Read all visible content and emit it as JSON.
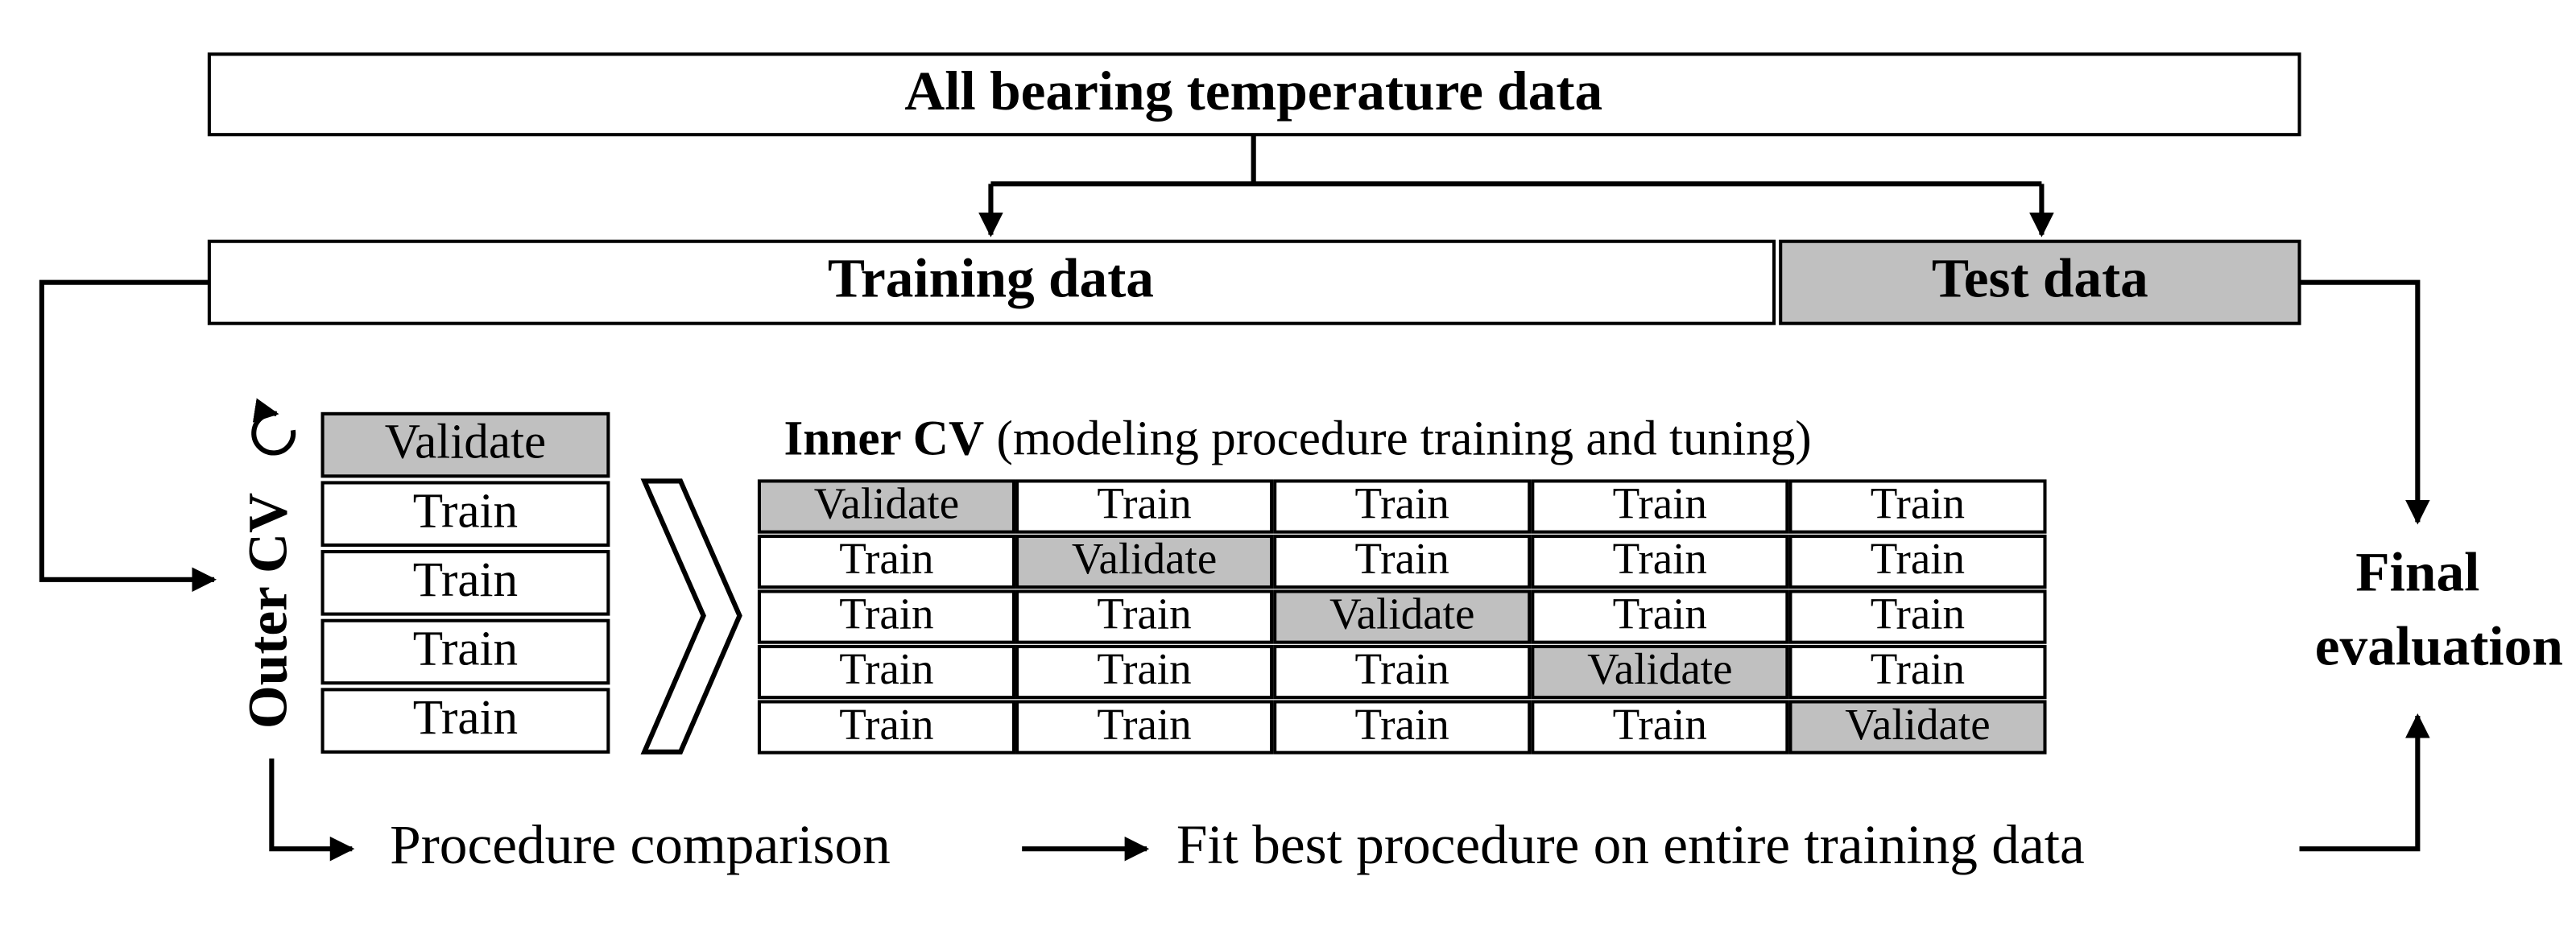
{
  "top_box": "All bearing temperature data",
  "training_box": "Training data",
  "test_box": "Test data",
  "outer_cv": {
    "label": "Outer CV",
    "folds": [
      "Validate",
      "Train",
      "Train",
      "Train",
      "Train"
    ]
  },
  "inner_cv": {
    "title_bold": "Inner CV",
    "title_rest": "(modeling procedure training and tuning)",
    "rows": [
      [
        "Validate",
        "Train",
        "Train",
        "Train",
        "Train"
      ],
      [
        "Train",
        "Validate",
        "Train",
        "Train",
        "Train"
      ],
      [
        "Train",
        "Train",
        "Validate",
        "Train",
        "Train"
      ],
      [
        "Train",
        "Train",
        "Train",
        "Validate",
        "Train"
      ],
      [
        "Train",
        "Train",
        "Train",
        "Train",
        "Validate"
      ]
    ]
  },
  "bottom": {
    "step1": "Procedure comparison",
    "step2": "Fit best procedure on entire training data"
  },
  "final": [
    "Final",
    "evaluation"
  ]
}
